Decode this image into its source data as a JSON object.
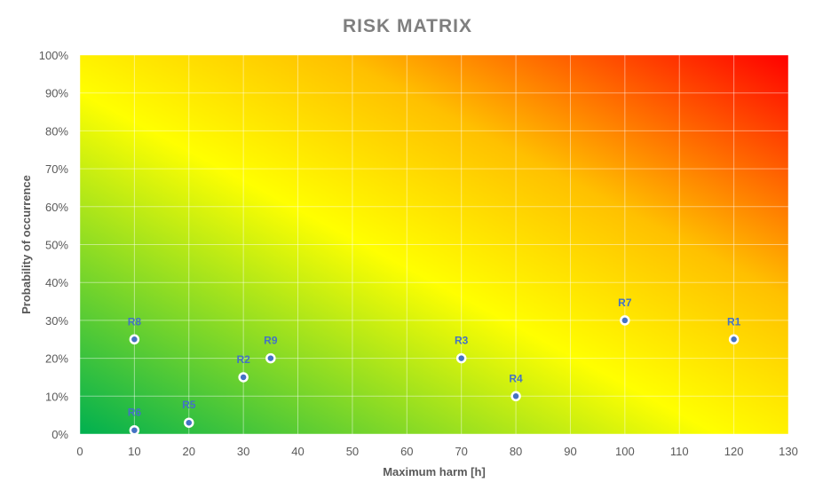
{
  "chart_data": {
    "type": "scatter",
    "title": "RISK MATRIX",
    "xlabel": "Maximum harm [h]",
    "ylabel": "Probability of occurrence",
    "xlim": [
      0,
      130
    ],
    "ylim": [
      0,
      100
    ],
    "x_ticks": [
      0,
      10,
      20,
      30,
      40,
      50,
      60,
      70,
      80,
      90,
      100,
      110,
      120,
      130
    ],
    "y_ticks": [
      0,
      10,
      20,
      30,
      40,
      50,
      60,
      70,
      80,
      90,
      100
    ],
    "x_tick_labels": [
      "0",
      "10",
      "20",
      "30",
      "40",
      "50",
      "60",
      "70",
      "80",
      "90",
      "100",
      "110",
      "120",
      "130"
    ],
    "y_tick_labels": [
      "0%",
      "10%",
      "20%",
      "30%",
      "40%",
      "50%",
      "60%",
      "70%",
      "80%",
      "90%",
      "100%"
    ],
    "grid": true,
    "legend": "none",
    "background_gradient": [
      "#00b050",
      "#ffff00",
      "#ffc000",
      "#ff0000"
    ],
    "point_fill": "#4472c4",
    "point_stroke": "#ffffff",
    "label_color": "#4472c4",
    "points": [
      {
        "label": "R1",
        "x": 120,
        "y": 25
      },
      {
        "label": "R2",
        "x": 30,
        "y": 15
      },
      {
        "label": "R3",
        "x": 70,
        "y": 20
      },
      {
        "label": "R4",
        "x": 80,
        "y": 10
      },
      {
        "label": "R5",
        "x": 20,
        "y": 3
      },
      {
        "label": "R6",
        "x": 10,
        "y": 1
      },
      {
        "label": "R7",
        "x": 100,
        "y": 30
      },
      {
        "label": "R8",
        "x": 10,
        "y": 25
      },
      {
        "label": "R9",
        "x": 35,
        "y": 20
      }
    ]
  }
}
